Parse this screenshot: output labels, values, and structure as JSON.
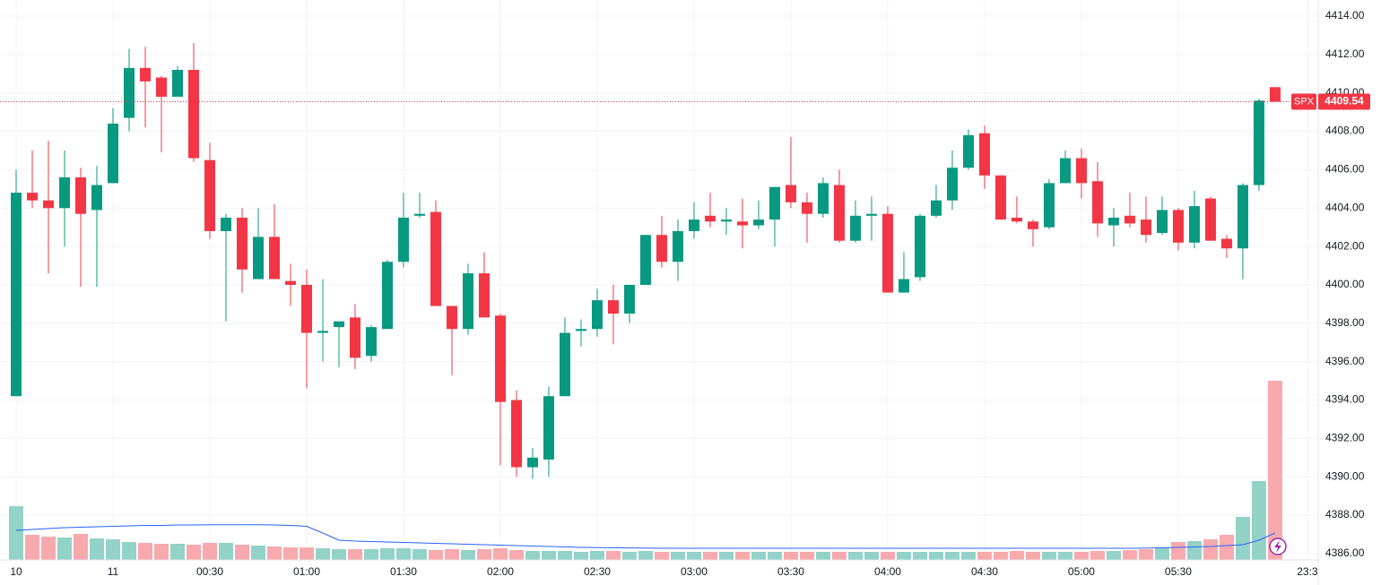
{
  "chart_data": {
    "type": "candlestick",
    "up_color": "#089981",
    "down_color": "#f23645",
    "volume_up_color": "#92d2c7",
    "volume_down_color": "#f7a9ae",
    "ma_color": "#2962ff",
    "open": [
      4394.2,
      4404.8,
      4404.4,
      4404.0,
      4405.6,
      4403.9,
      4405.3,
      4408.7,
      4411.3,
      4410.8,
      4409.8,
      4411.2,
      4406.5,
      4402.8,
      4403.5,
      4400.3,
      4402.5,
      4400.2,
      4400.0,
      4397.5,
      4397.8,
      4398.3,
      4396.3,
      4397.7,
      4401.2,
      4403.6,
      4403.8,
      4398.9,
      4397.7,
      4400.6,
      4398.4,
      4394.0,
      4390.5,
      4390.9,
      4394.2,
      4397.6,
      4397.7,
      4399.2,
      4398.5,
      4400.0,
      4402.6,
      4401.2,
      4402.8,
      4403.6,
      4403.3,
      4403.3,
      4403.1,
      4403.4,
      4405.2,
      4404.3,
      4403.7,
      4405.2,
      4402.3,
      4403.6,
      4403.7,
      4399.6,
      4400.4,
      4403.6,
      4404.4,
      4406.1,
      4407.9,
      4405.7,
      4403.5,
      4403.3,
      4403.0,
      4405.3,
      4406.6,
      4405.4,
      4403.1,
      4403.6,
      4403.4,
      4402.7,
      4403.9,
      4402.2,
      4404.5,
      4402.4,
      4401.9,
      4405.2,
      4410.3
    ],
    "high": [
      4406.0,
      4407.0,
      4407.5,
      4407.0,
      4406.1,
      4406.2,
      4409.2,
      4412.3,
      4412.4,
      4410.9,
      4411.4,
      4412.6,
      4407.4,
      4403.7,
      4404.0,
      4404.0,
      4404.2,
      4401.1,
      4400.8,
      4400.3,
      4398.1,
      4399.0,
      4397.9,
      4401.3,
      4404.8,
      4404.8,
      4404.4,
      4398.9,
      4401.1,
      4401.7,
      4398.5,
      4394.5,
      4391.5,
      4394.7,
      4398.3,
      4398.2,
      4399.8,
      4400.0,
      4400.0,
      4402.6,
      4403.6,
      4403.4,
      4404.3,
      4404.8,
      4404.0,
      4404.5,
      4404.4,
      4405.1,
      4407.7,
      4404.8,
      4405.6,
      4406.0,
      4404.4,
      4404.6,
      4404.1,
      4401.7,
      4403.7,
      4405.2,
      4407.0,
      4408.1,
      4408.3,
      4405.7,
      4404.6,
      4403.4,
      4405.5,
      4407.0,
      4407.1,
      4406.4,
      4404.0,
      4404.8,
      4404.6,
      4404.6,
      4404.0,
      4404.9,
      4404.6,
      4402.6,
      4405.3,
      4409.7,
      4410.3
    ],
    "low": [
      4394.2,
      4404.0,
      4400.6,
      4402.0,
      4399.9,
      4399.9,
      4405.3,
      4408.0,
      4408.2,
      4406.9,
      4409.8,
      4406.4,
      4402.4,
      4398.1,
      4399.6,
      4400.3,
      4400.3,
      4398.9,
      4394.6,
      4396.0,
      4395.7,
      4395.6,
      4396.0,
      4397.7,
      4400.9,
      4403.5,
      4398.9,
      4395.3,
      4397.4,
      4398.3,
      4390.6,
      4390.0,
      4389.9,
      4390.0,
      4394.2,
      4396.8,
      4397.3,
      4396.9,
      4398.0,
      4400.0,
      4400.9,
      4400.2,
      4402.4,
      4403.0,
      4402.6,
      4401.9,
      4402.9,
      4402.0,
      4404.0,
      4402.2,
      4403.5,
      4402.2,
      4402.2,
      4402.3,
      4399.6,
      4399.6,
      4400.2,
      4403.5,
      4403.9,
      4406.0,
      4405.0,
      4403.4,
      4403.2,
      4402.0,
      4402.9,
      4405.3,
      4404.5,
      4402.5,
      4402.0,
      4403.0,
      4402.2,
      4402.6,
      4401.8,
      4401.9,
      4402.3,
      4401.4,
      4400.3,
      4404.9,
      4409.54
    ],
    "close": [
      4404.8,
      4404.4,
      4404.0,
      4405.6,
      4403.7,
      4405.2,
      4408.4,
      4411.3,
      4410.6,
      4409.8,
      4411.2,
      4406.6,
      4402.8,
      4403.5,
      4400.8,
      4402.5,
      4400.3,
      4400.0,
      4397.5,
      4397.6,
      4398.1,
      4396.2,
      4397.8,
      4401.2,
      4403.5,
      4403.7,
      4398.9,
      4397.7,
      4400.6,
      4398.3,
      4393.9,
      4390.5,
      4391.0,
      4394.2,
      4397.5,
      4397.7,
      4399.2,
      4398.5,
      4400.0,
      4402.6,
      4401.2,
      4402.8,
      4403.4,
      4403.3,
      4403.4,
      4403.1,
      4403.4,
      4405.1,
      4404.3,
      4403.7,
      4405.3,
      4402.3,
      4403.6,
      4403.7,
      4399.6,
      4400.3,
      4403.6,
      4404.4,
      4406.1,
      4407.8,
      4405.7,
      4403.4,
      4403.3,
      4402.9,
      4405.3,
      4406.6,
      4405.3,
      4403.2,
      4403.5,
      4403.2,
      4402.6,
      4403.9,
      4402.2,
      4404.1,
      4402.3,
      4401.9,
      4405.2,
      4409.6,
      4409.54
    ],
    "volume": [
      60,
      28,
      26,
      25,
      29,
      24,
      23,
      20,
      19,
      18,
      18,
      17,
      19,
      19,
      17,
      16,
      15,
      14,
      14,
      13,
      12,
      12,
      12,
      13,
      13,
      12,
      11,
      12,
      11,
      12,
      13,
      11,
      10,
      10,
      10,
      9,
      10,
      10,
      9,
      10,
      9,
      9,
      9,
      9,
      9,
      9,
      9,
      9,
      9,
      9,
      9,
      9,
      9,
      9,
      9,
      9,
      9,
      9,
      9,
      9,
      9,
      9,
      10,
      9,
      9,
      9,
      9,
      10,
      10,
      11,
      12,
      14,
      20,
      21,
      23,
      28,
      48,
      88,
      200
    ],
    "volume_ma": [
      33,
      34,
      35,
      36,
      36.5,
      37,
      37.5,
      38,
      38.5,
      38.5,
      39,
      39,
      39.2,
      39.3,
      39.3,
      39.2,
      39,
      38.5,
      37.5,
      30,
      22,
      21,
      20.5,
      20,
      19.5,
      19,
      18.5,
      18,
      17.5,
      17,
      16.5,
      16,
      15.5,
      15,
      14.5,
      14,
      13.8,
      13.6,
      13.4,
      13.2,
      13,
      13,
      13,
      13,
      13,
      13,
      13,
      13,
      13,
      13,
      13,
      13,
      13,
      13,
      13,
      13,
      13,
      13,
      13,
      13,
      13,
      13,
      13,
      13,
      13,
      13,
      13,
      13,
      13,
      13,
      13.2,
      13.5,
      14,
      14.5,
      15,
      16,
      17,
      22,
      30
    ],
    "volume_ylim": [
      0,
      625
    ],
    "xlim": [
      -1,
      80.67
    ],
    "xticks": [
      {
        "value": 0,
        "label": "10"
      },
      {
        "value": 6,
        "label": "11"
      },
      {
        "value": 12,
        "label": "00:30"
      },
      {
        "value": 18,
        "label": "01:00"
      },
      {
        "value": 24,
        "label": "01:30"
      },
      {
        "value": 30,
        "label": "02:00"
      },
      {
        "value": 36,
        "label": "02:30"
      },
      {
        "value": 42,
        "label": "03:00"
      },
      {
        "value": 48,
        "label": "03:30"
      },
      {
        "value": 54,
        "label": "04:00"
      },
      {
        "value": 60,
        "label": "04:30"
      },
      {
        "value": 66,
        "label": "05:00"
      },
      {
        "value": 72,
        "label": "05:30"
      },
      {
        "value": 80,
        "label": "23:3"
      }
    ],
    "ylim": [
      4385.67,
      4414.84
    ],
    "yticks": [
      {
        "value": 4386,
        "label": "4386.00"
      },
      {
        "value": 4388,
        "label": "4388.00"
      },
      {
        "value": 4390,
        "label": "4390.00"
      },
      {
        "value": 4392,
        "label": "4392.00"
      },
      {
        "value": 4394,
        "label": "4394.00"
      },
      {
        "value": 4396,
        "label": "4396.00"
      },
      {
        "value": 4398,
        "label": "4398.00"
      },
      {
        "value": 4400,
        "label": "4400.00"
      },
      {
        "value": 4402,
        "label": "4402.00"
      },
      {
        "value": 4404,
        "label": "4404.00"
      },
      {
        "value": 4406,
        "label": "4406.00"
      },
      {
        "value": 4408,
        "label": "4408.00"
      },
      {
        "value": 4410,
        "label": "4410.00"
      },
      {
        "value": 4412,
        "label": "4412.00"
      },
      {
        "value": 4414,
        "label": "4414.00"
      }
    ],
    "grid": true,
    "last_price": {
      "symbol": "SPX",
      "value": 4409.54,
      "color": "#f23645"
    }
  }
}
